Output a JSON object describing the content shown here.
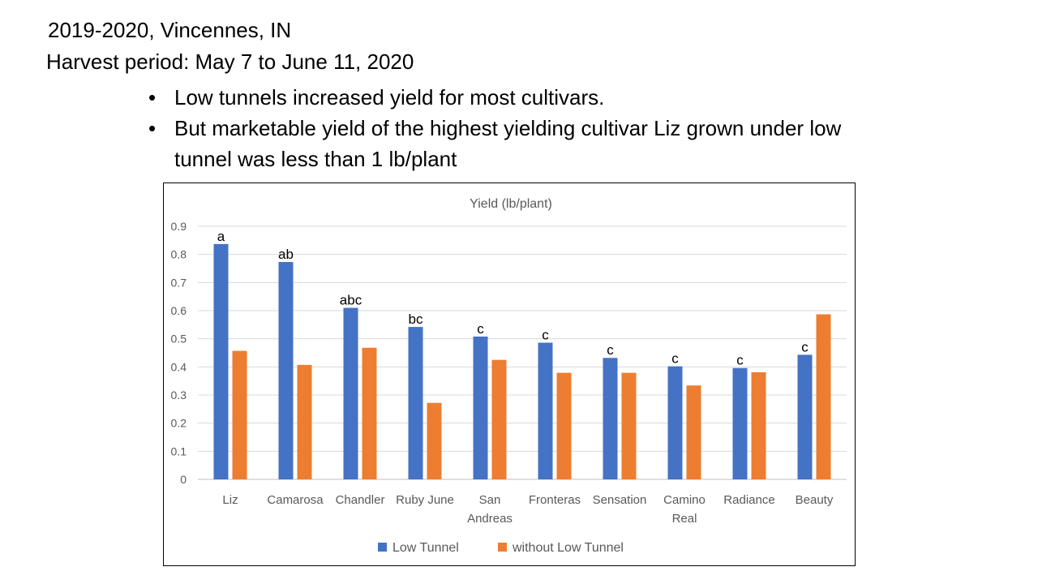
{
  "header": {
    "title_line1": "2019-2020, Vincennes, IN",
    "title_line2": "Harvest period: May 7 to June 11, 2020"
  },
  "bullets": [
    "Low tunnels increased yield for most cultivars.",
    "But marketable yield of the highest yielding cultivar Liz grown under low tunnel was less than 1 lb/plant"
  ],
  "chart_data": {
    "type": "bar",
    "title": "Yield (lb/plant)",
    "xlabel": "",
    "ylabel": "",
    "ylim": [
      0,
      0.9
    ],
    "yticks": [
      "0",
      "0.1",
      "0.2",
      "0.3",
      "0.4",
      "0.5",
      "0.6",
      "0.7",
      "0.8",
      "0.9"
    ],
    "grid": true,
    "legend_position": "bottom",
    "categories": [
      [
        "Liz"
      ],
      [
        "Camarosa"
      ],
      [
        "Chandler"
      ],
      [
        "Ruby June"
      ],
      [
        "San",
        "Andreas"
      ],
      [
        "Fronteras"
      ],
      [
        "Sensation"
      ],
      [
        "Camino",
        "Real"
      ],
      [
        "Radiance"
      ],
      [
        "Beauty"
      ]
    ],
    "series": [
      {
        "name": "Low Tunnel",
        "color": "#4472C4",
        "values": [
          0.837,
          0.773,
          0.61,
          0.542,
          0.508,
          0.486,
          0.432,
          0.402,
          0.396,
          0.443
        ]
      },
      {
        "name": "without Low Tunnel",
        "color": "#ED7D31",
        "values": [
          0.457,
          0.407,
          0.468,
          0.272,
          0.425,
          0.379,
          0.379,
          0.334,
          0.381,
          0.587
        ]
      }
    ],
    "significance_letters": [
      "a",
      "ab",
      "abc",
      "bc",
      "c",
      "c",
      "c",
      "c",
      "c",
      "c"
    ]
  }
}
